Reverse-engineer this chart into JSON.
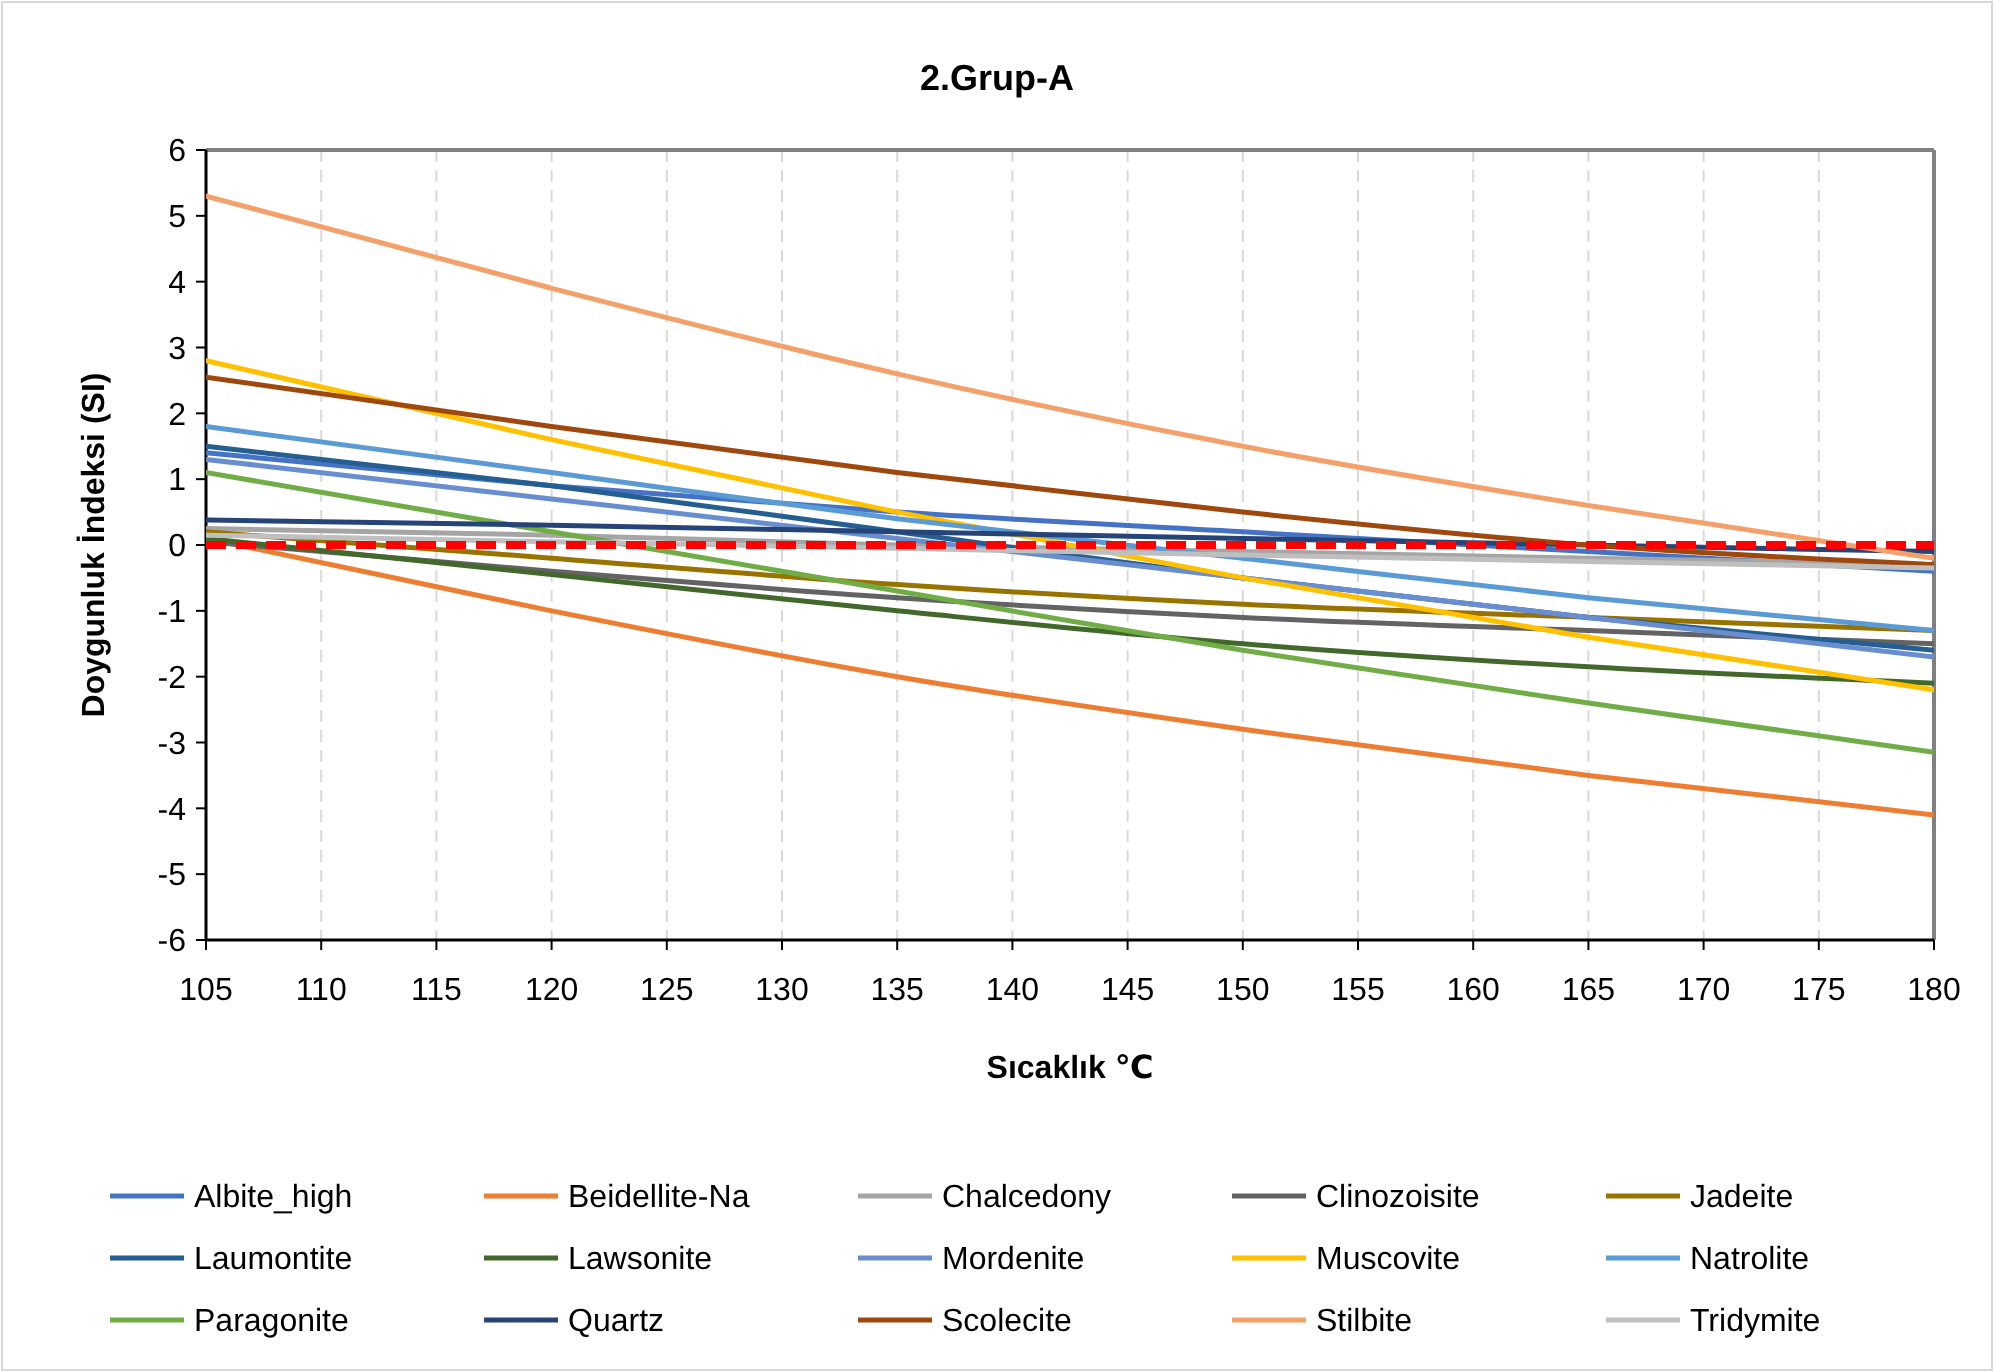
{
  "chart_data": {
    "type": "line",
    "title": "2.Grup-A",
    "xlabel": "Sıcaklık ℃",
    "ylabel": "Doygunluk İndeksi (SI)",
    "x": [
      105,
      120,
      135,
      150,
      165,
      180
    ],
    "xlim": [
      105,
      180
    ],
    "xticks": [
      105,
      110,
      115,
      120,
      125,
      130,
      135,
      140,
      145,
      150,
      155,
      160,
      165,
      170,
      175,
      180
    ],
    "ylim": [
      -6,
      6
    ],
    "yticks": [
      -6,
      -5,
      -4,
      -3,
      -2,
      -1,
      0,
      1,
      2,
      3,
      4,
      5,
      6
    ],
    "grid": "x",
    "legend": "bottom",
    "marker": "none",
    "line_style": "solid",
    "ref_lines": [
      {
        "axis": "y",
        "value": 0,
        "color": "#ff0000",
        "line_style": "dashed"
      }
    ],
    "series": [
      {
        "name": "Albite_high",
        "color": "#4472c4",
        "values": [
          1.4,
          0.9,
          0.5,
          0.2,
          -0.1,
          -0.4
        ]
      },
      {
        "name": "Beidellite-Na",
        "color": "#ed7d31",
        "values": [
          0.1,
          -1.0,
          -2.0,
          -2.8,
          -3.5,
          -4.1
        ]
      },
      {
        "name": "Chalcedony",
        "color": "#a5a5a5",
        "values": [
          0.25,
          0.15,
          0.0,
          -0.1,
          -0.2,
          -0.3
        ]
      },
      {
        "name": "Clinozoisite",
        "color": "#636363",
        "values": [
          0.05,
          -0.4,
          -0.8,
          -1.1,
          -1.3,
          -1.5
        ]
      },
      {
        "name": "Jadeite",
        "color": "#997300",
        "values": [
          0.2,
          -0.2,
          -0.6,
          -0.9,
          -1.1,
          -1.3
        ]
      },
      {
        "name": "Laumontite",
        "color": "#255e91",
        "values": [
          1.5,
          0.9,
          0.2,
          -0.5,
          -1.1,
          -1.6
        ]
      },
      {
        "name": "Lawsonite",
        "color": "#43682b",
        "values": [
          0.1,
          -0.45,
          -1.0,
          -1.5,
          -1.85,
          -2.1
        ]
      },
      {
        "name": "Mordenite",
        "color": "#698ed0",
        "values": [
          1.3,
          0.7,
          0.1,
          -0.5,
          -1.1,
          -1.7
        ]
      },
      {
        "name": "Muscovite",
        "color": "#ffc000",
        "values": [
          2.8,
          1.6,
          0.5,
          -0.5,
          -1.4,
          -2.2
        ]
      },
      {
        "name": "Natrolite",
        "color": "#5b9bd5",
        "values": [
          1.8,
          1.1,
          0.4,
          -0.2,
          -0.8,
          -1.3
        ]
      },
      {
        "name": "Paragonite",
        "color": "#70ad47",
        "values": [
          1.1,
          0.2,
          -0.7,
          -1.6,
          -2.4,
          -3.15
        ]
      },
      {
        "name": "Quartz",
        "color": "#264478",
        "values": [
          0.38,
          0.3,
          0.2,
          0.1,
          0.0,
          -0.1
        ]
      },
      {
        "name": "Scolecite",
        "color": "#9e480e",
        "values": [
          2.55,
          1.8,
          1.1,
          0.5,
          0.0,
          -0.3
        ]
      },
      {
        "name": "Stilbite",
        "color": "#f4a06a",
        "values": [
          5.3,
          3.9,
          2.6,
          1.5,
          0.6,
          -0.2
        ]
      },
      {
        "name": "Tridymite",
        "color": "#bfbfbf",
        "values": [
          0.15,
          0.05,
          -0.05,
          -0.15,
          -0.25,
          -0.35
        ]
      }
    ]
  }
}
